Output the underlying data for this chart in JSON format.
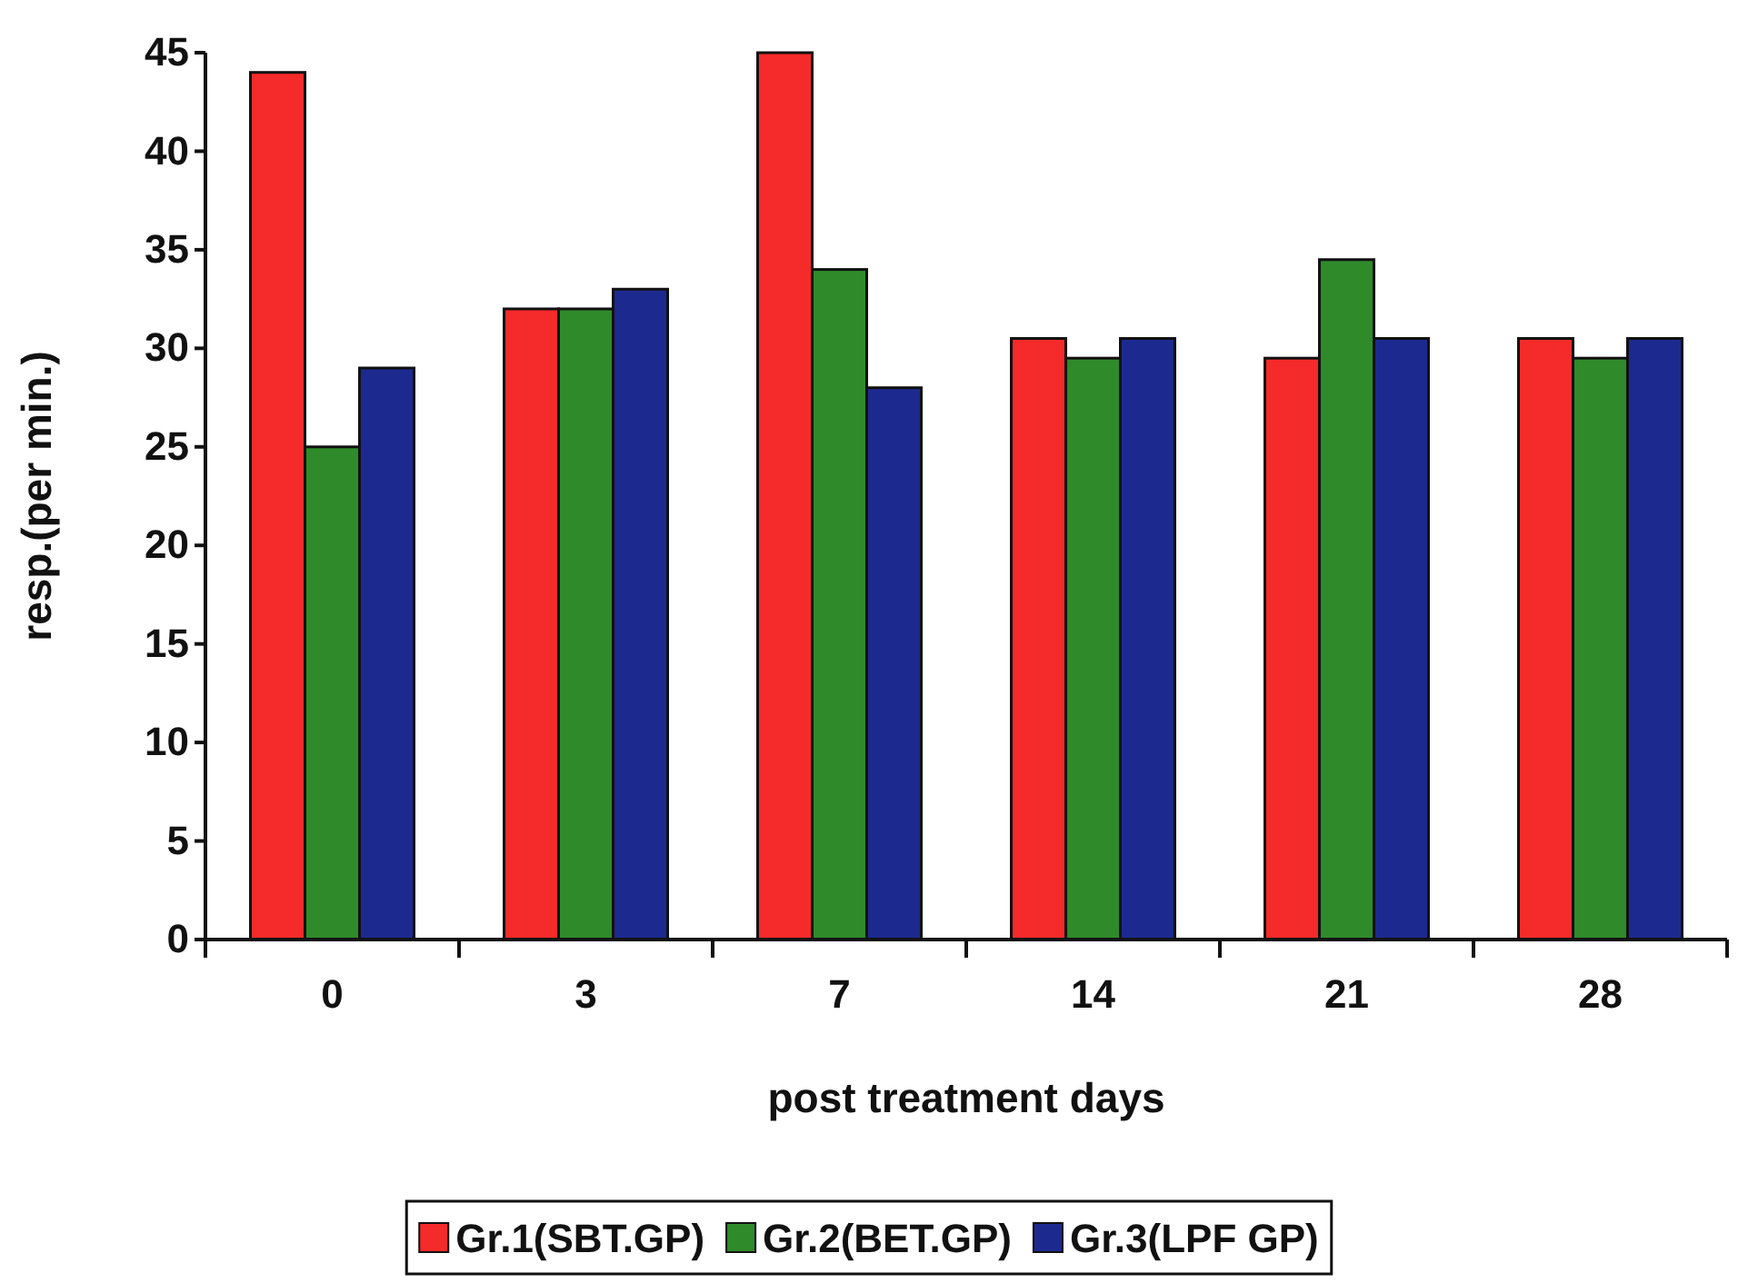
{
  "chart_data": {
    "type": "bar",
    "xlabel": "post treatment days",
    "ylabel": "resp.(per min.)",
    "categories": [
      "0",
      "3",
      "7",
      "14",
      "21",
      "28"
    ],
    "series": [
      {
        "name": "Gr.1(SBT.GP)",
        "color": "#f52a2a",
        "values": [
          44,
          32,
          45,
          30.5,
          29.5,
          30.5
        ]
      },
      {
        "name": "Gr.2(BET.GP)",
        "color": "#2f8a2a",
        "values": [
          25,
          32,
          34,
          29.5,
          34.5,
          29.5
        ]
      },
      {
        "name": "Gr.3(LPF GP)",
        "color": "#1c2a90",
        "values": [
          29,
          33,
          28,
          30.5,
          30.5,
          30.5
        ]
      }
    ],
    "ylim": [
      0,
      45
    ],
    "yticks": [
      0,
      5,
      10,
      15,
      20,
      25,
      30,
      35,
      40,
      45
    ],
    "grid": false,
    "legend": "bottom"
  }
}
